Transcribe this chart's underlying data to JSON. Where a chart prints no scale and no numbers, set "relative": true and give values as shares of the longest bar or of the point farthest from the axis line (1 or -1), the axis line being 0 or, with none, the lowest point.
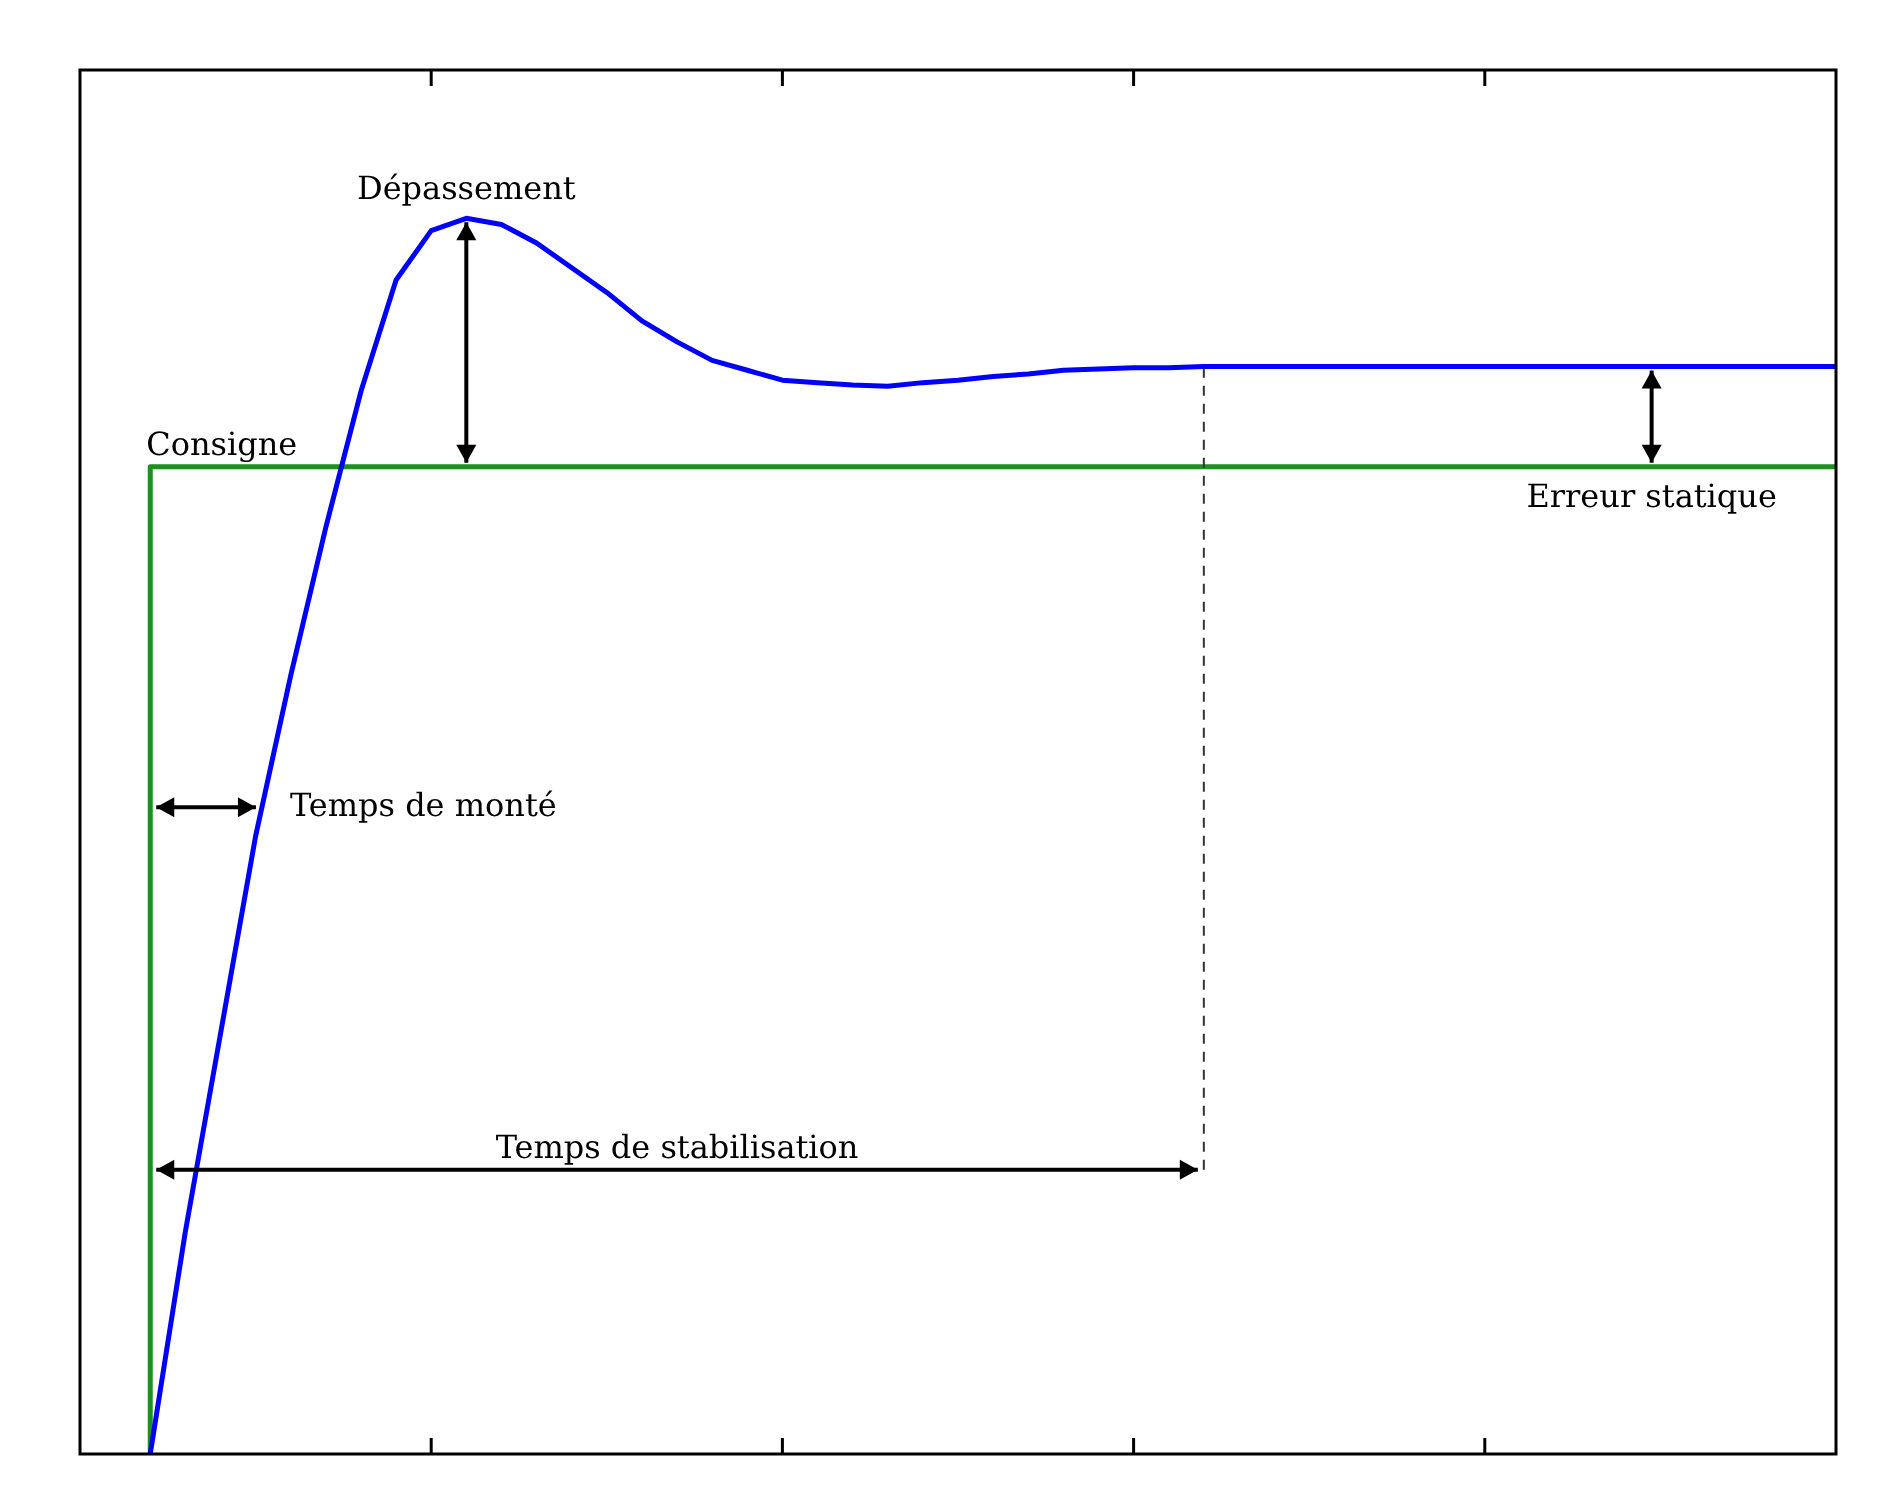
{
  "chart_data": {
    "type": "line",
    "relative": true,
    "categories": [
      null,
      null,
      null,
      null,
      null,
      null,
      null,
      null,
      null,
      null,
      null,
      null,
      null,
      null,
      null,
      null,
      null,
      null,
      null,
      null,
      null,
      null,
      null,
      null,
      null,
      null,
      null,
      null,
      null,
      null,
      null,
      null,
      null,
      null,
      null,
      null,
      null,
      null,
      null,
      null,
      null,
      null,
      null,
      null,
      null,
      null,
      null,
      null,
      null,
      null,
      null
    ],
    "series": [
      {
        "color": "#0000ff",
        "values": [
          null,
          null,
          0,
          0.18,
          0.34,
          0.5,
          0.63,
          0.75,
          0.86,
          0.95,
          0.99,
          1,
          0.995,
          0.98,
          0.96,
          0.94,
          0.917,
          0.9,
          0.885,
          0.877,
          0.869,
          0.867,
          0.865,
          0.864,
          0.867,
          0.869,
          0.872,
          0.874,
          0.877,
          0.878,
          0.879,
          0.879,
          0.88,
          0.88,
          0.88,
          0.88,
          0.88,
          0.88,
          0.88,
          0.88,
          0.88,
          0.88,
          0.88,
          0.88,
          0.88,
          0.88,
          0.88,
          0.88,
          0.88,
          0.88,
          0.88
        ]
      },
      {
        "type": "step",
        "color": "#1f8f1f",
        "values": [
          null,
          null,
          0,
          0.799,
          0.799,
          0.799,
          0.799,
          0.799,
          0.799,
          0.799,
          0.799,
          0.799,
          0.799,
          0.799,
          0.799,
          0.799,
          0.799,
          0.799,
          0.799,
          0.799,
          0.799,
          0.799,
          0.799,
          0.799,
          0.799,
          0.799,
          0.799,
          0.799,
          0.799,
          0.799,
          0.799,
          0.799,
          0.799,
          0.799,
          0.799,
          0.799,
          0.799,
          0.799,
          0.799,
          0.799,
          0.799,
          0.799,
          0.799,
          0.799,
          0.799,
          0.799,
          0.799,
          0.799,
          0.799,
          0.799,
          0.799
        ]
      }
    ],
    "annotations": [
      {
        "text": "Dépassement",
        "y": 1
      },
      {
        "text": "Consigne",
        "y": 0.799
      },
      "Temps de monté",
      "Temps de stabilisation",
      {
        "text": "Erreur statique",
        "y": 0.88
      }
    ]
  }
}
